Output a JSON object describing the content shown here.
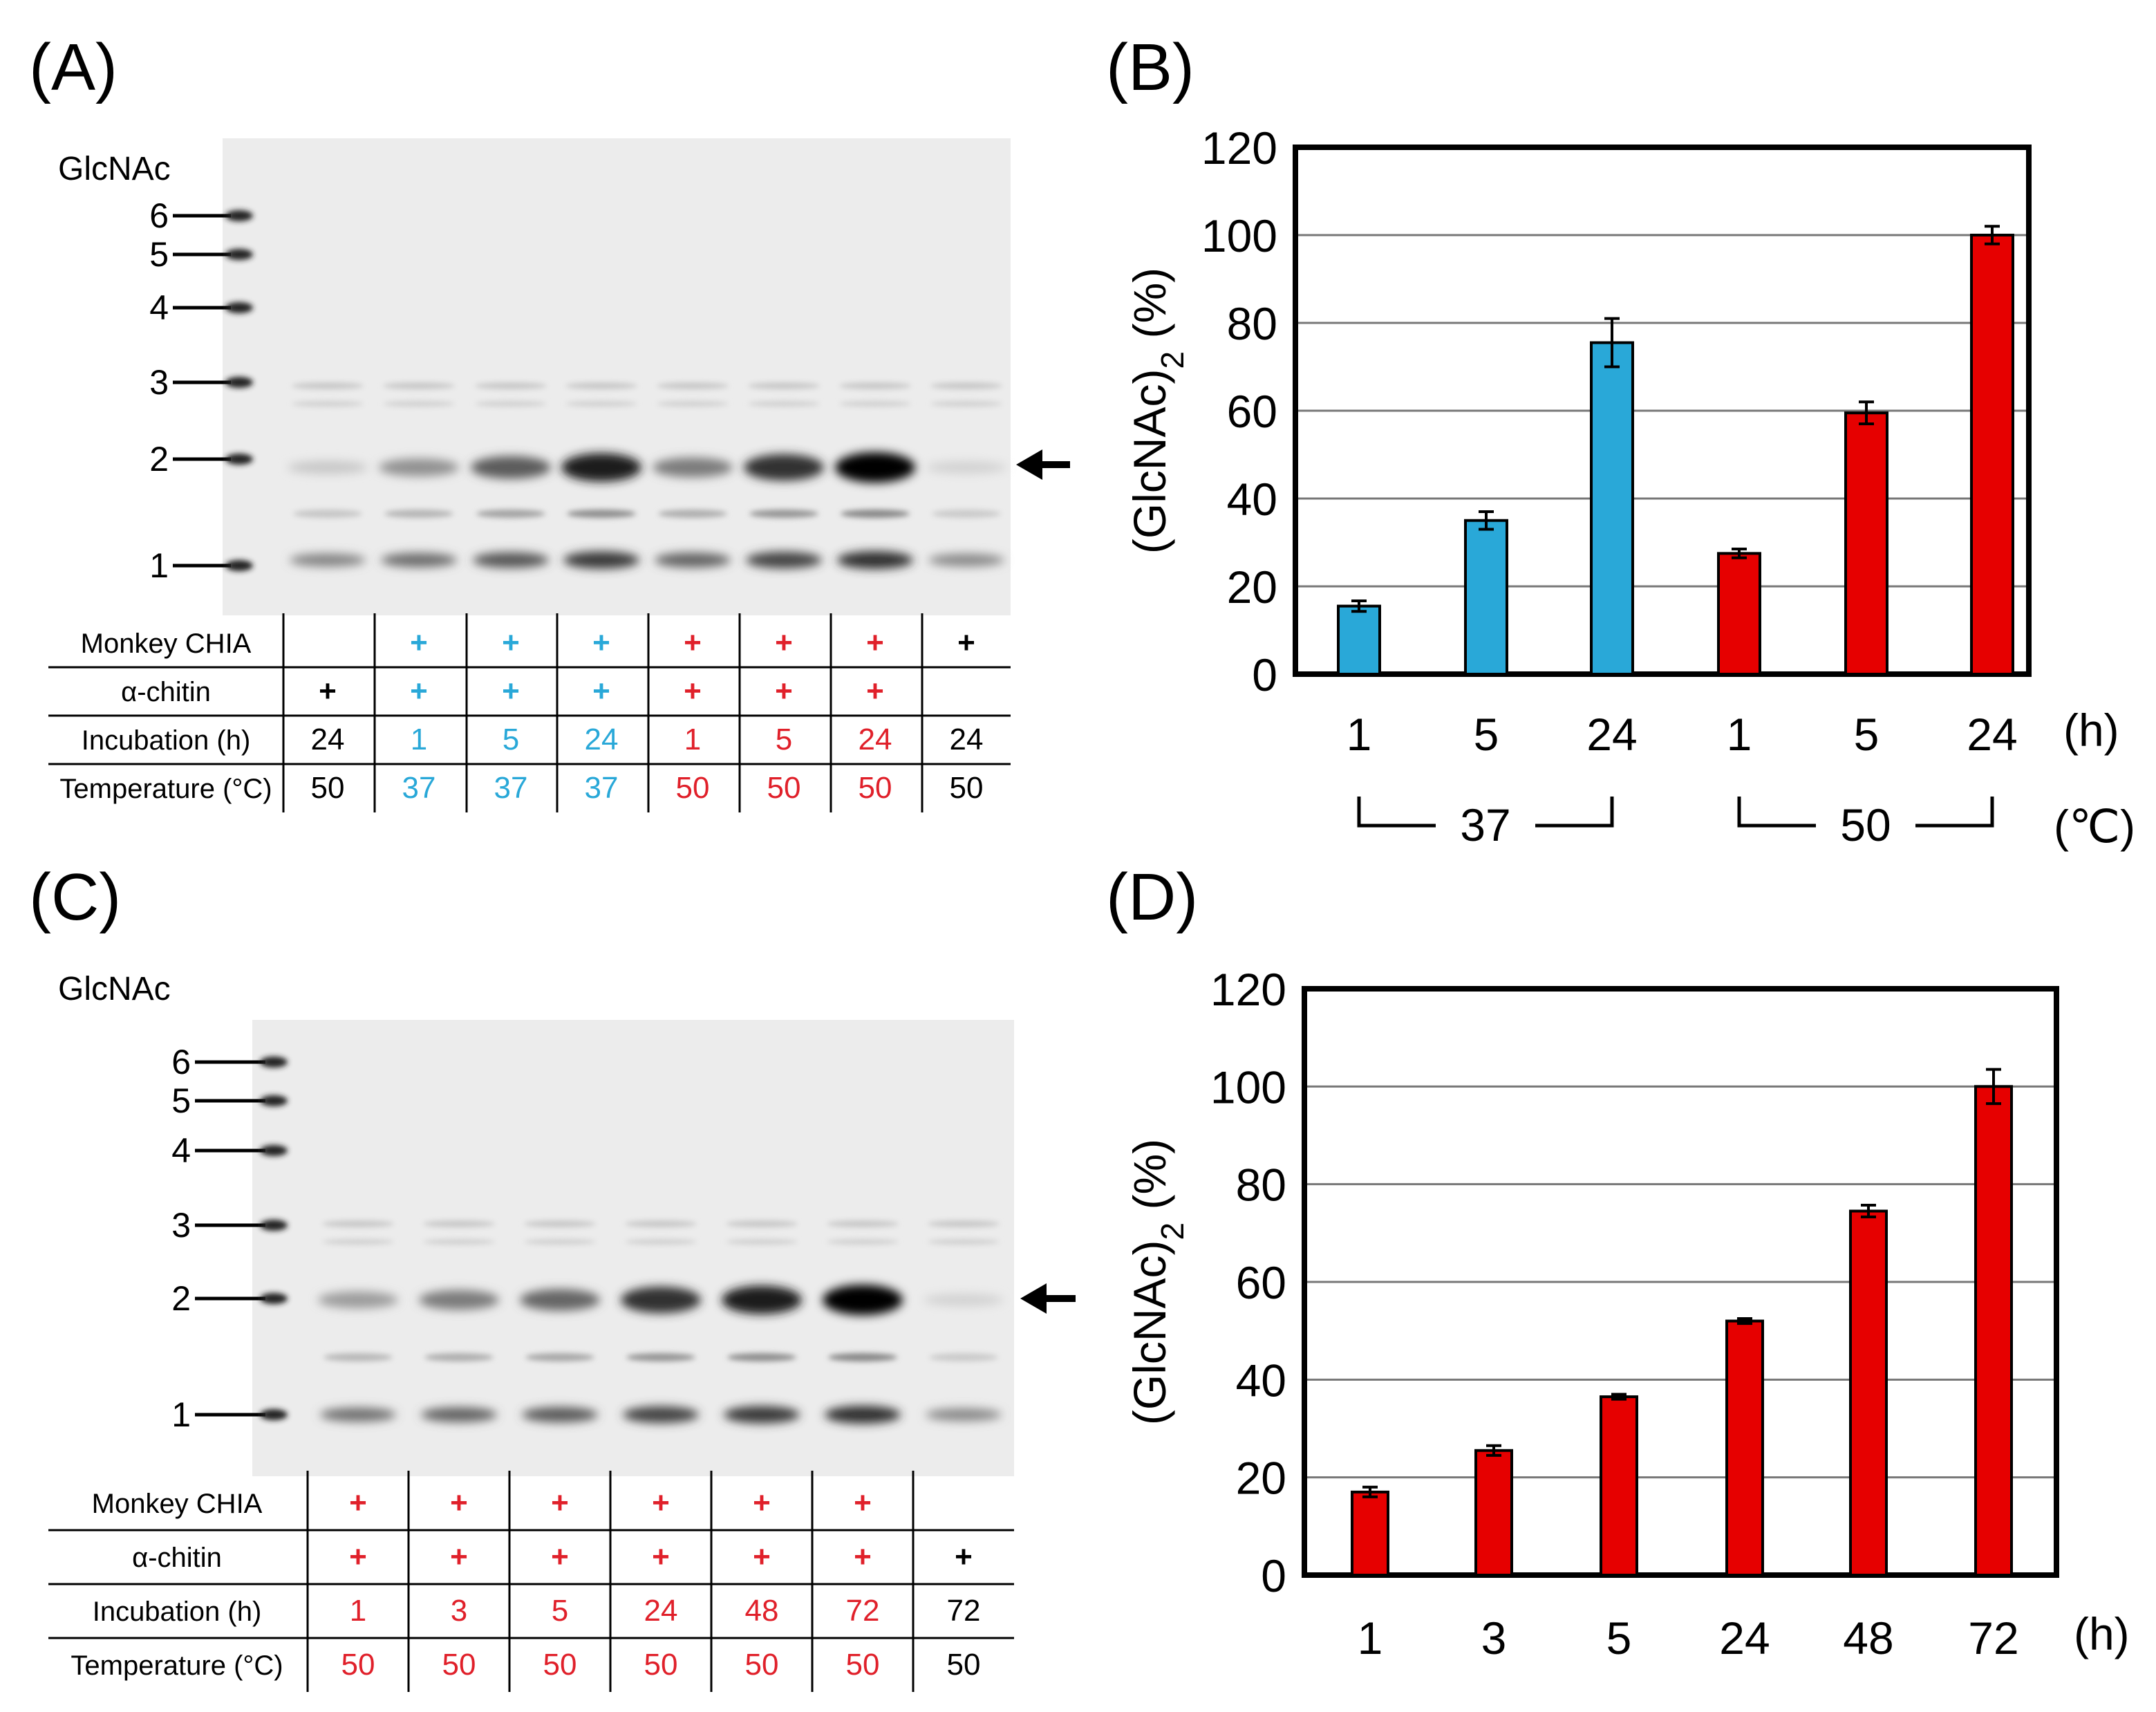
{
  "panel_A": {
    "label": "(A)",
    "marker_title": "GlcNAc",
    "marker_labels": [
      "6",
      "5",
      "4",
      "3",
      "2",
      "1"
    ],
    "rows": [
      {
        "label": "Monkey CHIA",
        "cells": [
          "",
          "+",
          "+",
          "+",
          "+",
          "+",
          "+",
          "+"
        ]
      },
      {
        "label": "α-chitin",
        "cells": [
          "+",
          "+",
          "+",
          "+",
          "+",
          "+",
          "+",
          ""
        ]
      },
      {
        "label": "Incubation (h)",
        "cells": [
          "24",
          "1",
          "5",
          "24",
          "1",
          "5",
          "24",
          "24"
        ]
      },
      {
        "label": "Temperature (°C)",
        "cells": [
          "50",
          "37",
          "37",
          "37",
          "50",
          "50",
          "50",
          "50"
        ]
      }
    ],
    "column_colors": [
      "#000000",
      "#29a8d8",
      "#29a8d8",
      "#29a8d8",
      "#e0202a",
      "#e0202a",
      "#e0202a",
      "#000000"
    ],
    "lane_band_intensity": [
      0.1,
      0.35,
      0.6,
      0.9,
      0.45,
      0.8,
      1.0,
      0.05
    ]
  },
  "panel_C": {
    "label": "(C)",
    "marker_title": "GlcNAc",
    "marker_labels": [
      "6",
      "5",
      "4",
      "3",
      "2",
      "1"
    ],
    "rows": [
      {
        "label": "Monkey CHIA",
        "cells": [
          "+",
          "+",
          "+",
          "+",
          "+",
          "+",
          ""
        ]
      },
      {
        "label": "α-chitin",
        "cells": [
          "+",
          "+",
          "+",
          "+",
          "+",
          "+",
          "+"
        ]
      },
      {
        "label": "Incubation (h)",
        "cells": [
          "1",
          "3",
          "5",
          "24",
          "48",
          "72",
          "72"
        ]
      },
      {
        "label": "Temperature (°C)",
        "cells": [
          "50",
          "50",
          "50",
          "50",
          "50",
          "50",
          "50"
        ]
      }
    ],
    "column_colors": [
      "#e0202a",
      "#e0202a",
      "#e0202a",
      "#e0202a",
      "#e0202a",
      "#e0202a",
      "#000000"
    ],
    "lane_band_intensity": [
      0.3,
      0.45,
      0.55,
      0.8,
      0.9,
      1.0,
      0.05
    ]
  },
  "colors": {
    "blue": "#29a8d8",
    "red": "#e60000",
    "gel": "#ececec"
  },
  "chart_data": [
    {
      "panel": "(B)",
      "type": "bar",
      "categories": [
        "1",
        "5",
        "24",
        "1",
        "5",
        "24"
      ],
      "values": [
        15.5,
        35,
        75.5,
        27.5,
        59.5,
        100
      ],
      "errors": [
        1.2,
        2,
        5.5,
        1,
        2.5,
        2
      ],
      "bar_colors": [
        "#29a8d8",
        "#29a8d8",
        "#29a8d8",
        "#e60000",
        "#e60000",
        "#e60000"
      ],
      "ylabel": "(GlcNAc)",
      "ylabel_subscript": "2",
      "ylabel_suffix": " (%)",
      "xlabel": "(h)",
      "yticks": [
        "0",
        "20",
        "40",
        "60",
        "80",
        "100",
        "120"
      ],
      "ylim": [
        0,
        120
      ],
      "groups": [
        {
          "label": "37",
          "first": 0,
          "last": 2
        },
        {
          "label": "50",
          "first": 3,
          "last": 5
        }
      ],
      "group_unit": "(℃)",
      "grid": true
    },
    {
      "panel": "(D)",
      "type": "bar",
      "categories": [
        "1",
        "3",
        "5",
        "24",
        "48",
        "72"
      ],
      "values": [
        17,
        25.5,
        36.5,
        52,
        74.5,
        100
      ],
      "errors": [
        1,
        1,
        0.5,
        0.5,
        1.2,
        3.5
      ],
      "bar_colors": [
        "#e60000",
        "#e60000",
        "#e60000",
        "#e60000",
        "#e60000",
        "#e60000"
      ],
      "ylabel": "(GlcNAc)",
      "ylabel_subscript": "2",
      "ylabel_suffix": " (%)",
      "xlabel": "(h)",
      "yticks": [
        "0",
        "20",
        "40",
        "60",
        "80",
        "100",
        "120"
      ],
      "ylim": [
        0,
        120
      ],
      "grid": true
    }
  ]
}
